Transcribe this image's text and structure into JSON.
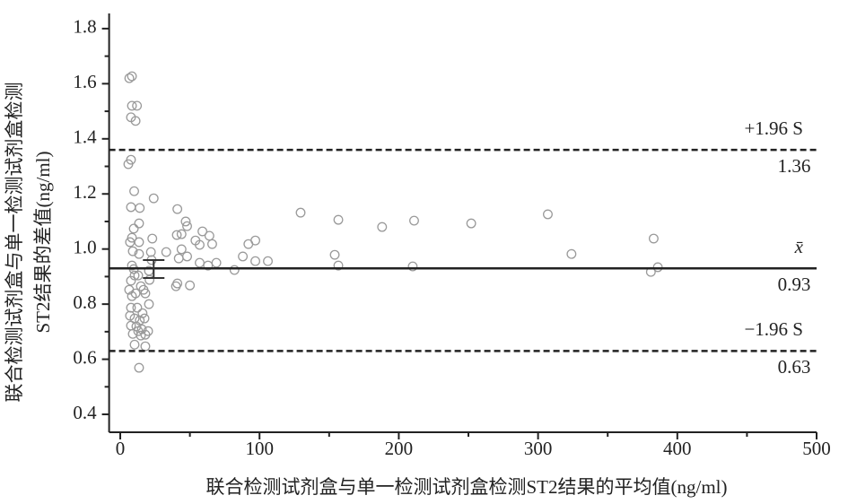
{
  "chart_data": {
    "type": "scatter",
    "x_label": "联合检测试剂盒与单一检测试剂盒检测ST2结果的平均值(ng/ml)",
    "y_label": [
      "联合检测试剂盒与单一检测试剂盒检测",
      "ST2结果的差值(ng/ml)"
    ],
    "xlim": [
      -8,
      500
    ],
    "ylim": [
      0.335,
      1.855
    ],
    "xticks": [
      0,
      100,
      200,
      300,
      400,
      500
    ],
    "yticks": [
      {
        "value": 0.4,
        "label": "0.4"
      },
      {
        "value": 0.6,
        "label": "0.6"
      },
      {
        "value": 0.8,
        "label": "0.8"
      },
      {
        "value": 1.0,
        "label": "1.0"
      },
      {
        "value": 1.2,
        "label": "1.2"
      },
      {
        "value": 1.4,
        "label": "1.4"
      },
      {
        "value": 1.6,
        "label": "1.6"
      },
      {
        "value": 1.8,
        "label": "1.8"
      }
    ],
    "xminorticks": [
      50,
      150,
      250,
      350,
      450
    ],
    "yminorticks": [
      0.5,
      0.7,
      0.9,
      1.1,
      1.3,
      1.5,
      1.7
    ],
    "color": "#9a9a9a",
    "reference_lines": [
      {
        "value": 1.36,
        "label": "+1.96 S",
        "style": "dashed"
      },
      {
        "value": 0.93,
        "label": "x̄",
        "style": "solid"
      },
      {
        "value": 0.63,
        "label": "−1.96 S",
        "style": "dashed"
      }
    ],
    "error_bar": {
      "x": 24,
      "lower": 0.895,
      "upper": 0.96
    },
    "x": [
      129.5,
      156.6,
      154,
      156.6,
      188,
      211,
      210,
      252,
      307,
      324,
      383,
      381,
      386,
      97,
      106,
      97,
      92,
      88,
      82,
      40.6,
      44,
      41,
      47,
      48,
      59,
      64,
      66,
      57,
      54,
      44,
      48,
      57,
      63,
      69,
      50,
      41,
      40,
      42,
      33,
      24,
      23,
      22,
      22.5,
      20.6,
      21,
      20.6,
      8.4,
      6.5,
      8.4,
      12,
      7.7,
      11,
      7.7,
      5.8,
      10,
      7.7,
      14,
      13.5,
      9.7,
      8.4,
      13.5,
      7,
      9,
      13.5,
      8.4,
      9.7,
      10.3,
      7.7,
      12.9,
      14.8,
      6.4,
      11,
      8.4,
      16.7,
      18,
      12.2,
      7.7,
      16,
      10.3,
      7,
      14,
      17.4,
      11.6,
      12.9,
      15.5,
      20,
      9,
      14.8,
      18,
      10.3,
      18,
      13.5,
      7.7
    ],
    "y": [
      1.132,
      1.106,
      0.979,
      0.94,
      1.08,
      1.103,
      0.937,
      1.093,
      1.126,
      0.982,
      1.038,
      0.917,
      0.934,
      0.956,
      0.956,
      1.031,
      1.018,
      0.973,
      0.924,
      1.051,
      1.054,
      1.145,
      1.1,
      1.083,
      1.064,
      1.048,
      1.018,
      1.015,
      1.031,
      0.999,
      0.973,
      0.95,
      0.94,
      0.95,
      0.868,
      0.875,
      0.865,
      0.966,
      0.989,
      1.184,
      1.038,
      0.989,
      0.96,
      0.921,
      0.888,
      0.8,
      1.627,
      1.62,
      1.52,
      1.52,
      1.478,
      1.465,
      1.324,
      1.308,
      1.21,
      1.152,
      1.149,
      1.093,
      1.074,
      1.041,
      1.025,
      1.025,
      0.992,
      0.982,
      0.94,
      0.927,
      0.904,
      0.885,
      0.904,
      0.865,
      0.852,
      0.839,
      0.829,
      0.852,
      0.839,
      0.787,
      0.787,
      0.767,
      0.748,
      0.758,
      0.741,
      0.748,
      0.719,
      0.702,
      0.709,
      0.702,
      0.692,
      0.686,
      0.689,
      0.653,
      0.647,
      0.569,
      0.722
    ]
  }
}
